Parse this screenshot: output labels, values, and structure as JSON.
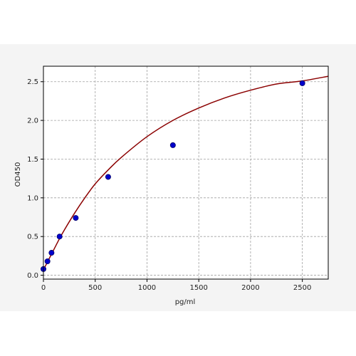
{
  "chart_data": {
    "type": "scatter",
    "xlabel": "pg/ml",
    "ylabel": "OD450",
    "xlim": [
      0,
      2750
    ],
    "ylim": [
      -0.05,
      2.7
    ],
    "x_ticks": [
      0,
      500,
      1000,
      1500,
      2000,
      2500
    ],
    "x_tick_labels": [
      "0",
      "500",
      "1000",
      "1500",
      "2000",
      "2500"
    ],
    "y_ticks": [
      0.0,
      0.5,
      1.0,
      1.5,
      2.0,
      2.5
    ],
    "y_tick_labels": [
      "0.0",
      "0.5",
      "1.0",
      "1.5",
      "2.0",
      "2.5"
    ],
    "grid": true,
    "points": {
      "x": [
        0,
        39,
        78,
        156,
        312,
        625,
        1250,
        2500
      ],
      "y": [
        0.08,
        0.18,
        0.29,
        0.5,
        0.74,
        1.27,
        1.68,
        2.48
      ]
    },
    "fit_curve": {
      "x": [
        0,
        50,
        100,
        150,
        200,
        300,
        400,
        500,
        625,
        750,
        1000,
        1250,
        1500,
        1750,
        2000,
        2250,
        2500,
        2750
      ],
      "y": [
        0.07,
        0.2,
        0.33,
        0.46,
        0.58,
        0.8,
        1.0,
        1.18,
        1.36,
        1.52,
        1.79,
        2.0,
        2.16,
        2.29,
        2.39,
        2.47,
        2.51,
        2.57
      ]
    },
    "colors": {
      "background": "#f4f4f4",
      "plot_background": "#ffffff",
      "grid": "#a0a0a0",
      "curve": "#8b0000",
      "marker_fill": "#0000cc",
      "marker_edge": "#000066"
    }
  }
}
